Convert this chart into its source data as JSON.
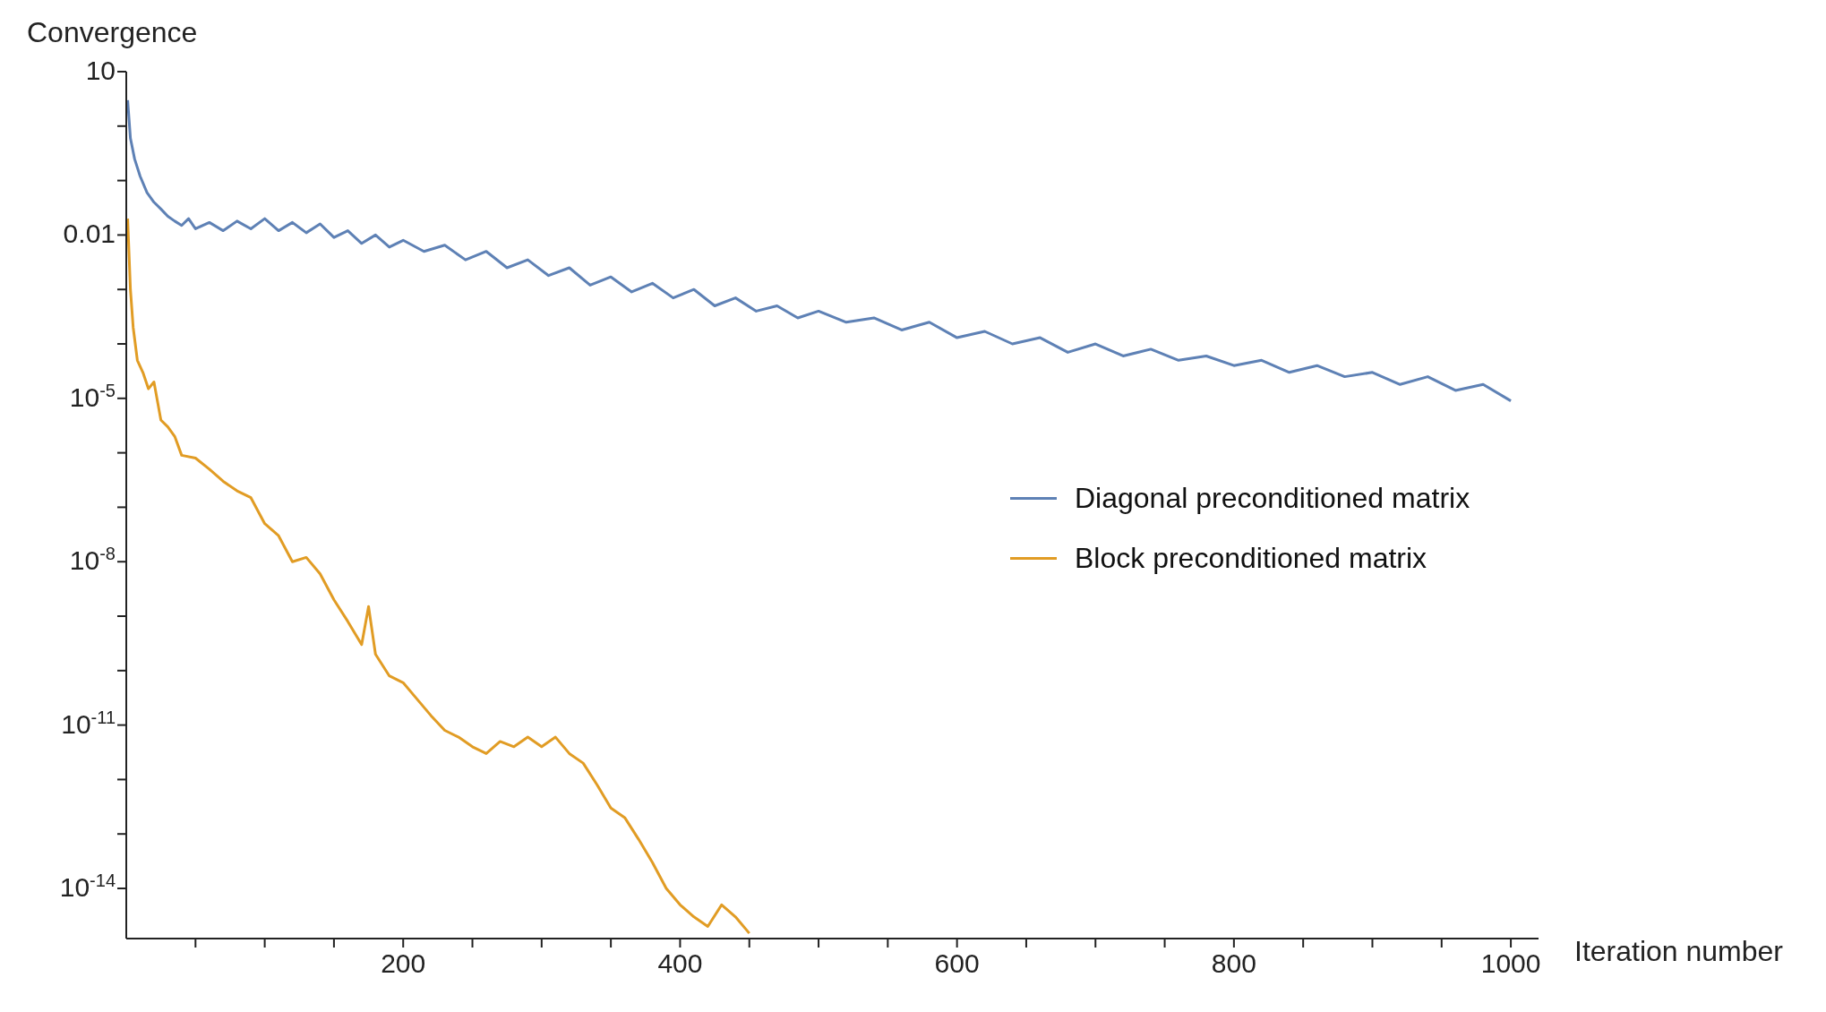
{
  "chart_data": {
    "type": "line",
    "xlabel": "Iteration number",
    "ylabel": "Convergence",
    "log": "y",
    "legend": "right",
    "marker": "none",
    "line_style": "solid",
    "xlim": [
      0,
      1020
    ],
    "xticks": [
      {
        "value": 50,
        "label": null
      },
      {
        "value": 100,
        "label": null
      },
      {
        "value": 150,
        "label": null
      },
      200,
      {
        "value": 250,
        "label": null
      },
      {
        "value": 300,
        "label": null
      },
      {
        "value": 350,
        "label": null
      },
      400,
      {
        "value": 450,
        "label": null
      },
      {
        "value": 500,
        "label": null
      },
      {
        "value": 550,
        "label": null
      },
      600,
      {
        "value": 650,
        "label": null
      },
      {
        "value": 700,
        "label": null
      },
      {
        "value": 750,
        "label": null
      },
      800,
      {
        "value": 850,
        "label": null
      },
      {
        "value": 900,
        "label": null
      },
      {
        "value": 950,
        "label": null
      },
      1000
    ],
    "ylim": [
      1.2e-15,
      10
    ],
    "yticks": [
      {
        "value": 1e-14,
        "label": "10$^{-14}$"
      },
      {
        "value": 1e-13,
        "label": null
      },
      {
        "value": 1e-12,
        "label": null
      },
      {
        "value": 1e-11,
        "label": "10$^{-11}$"
      },
      {
        "value": 1e-10,
        "label": null
      },
      {
        "value": 1e-09,
        "label": null
      },
      {
        "value": 1e-08,
        "label": "10$^{-8}$"
      },
      {
        "value": 1e-07,
        "label": null
      },
      {
        "value": 1e-06,
        "label": null
      },
      {
        "value": 1e-05,
        "label": "10$^{-5}$"
      },
      {
        "value": 0.0001,
        "label": null
      },
      {
        "value": 0.001,
        "label": null
      },
      0.01,
      {
        "value": 0.1,
        "label": null
      },
      {
        "value": 1,
        "label": null
      },
      10
    ],
    "series": [
      {
        "name": "Diagonal preconditioned matrix",
        "color": "#5e81b5",
        "x": [
          1,
          3,
          6,
          10,
          15,
          20,
          25,
          30,
          35,
          40,
          45,
          50,
          60,
          70,
          80,
          90,
          100,
          110,
          120,
          130,
          140,
          150,
          160,
          170,
          180,
          190,
          200,
          215,
          230,
          245,
          260,
          275,
          290,
          305,
          320,
          335,
          350,
          365,
          380,
          395,
          410,
          425,
          440,
          455,
          470,
          485,
          500,
          520,
          540,
          560,
          580,
          600,
          620,
          640,
          660,
          680,
          700,
          720,
          740,
          760,
          780,
          800,
          820,
          840,
          860,
          880,
          900,
          920,
          940,
          960,
          980,
          1000
        ],
        "values": [
          3,
          0.6,
          0.25,
          0.12,
          0.06,
          0.04,
          0.03,
          0.022,
          0.018,
          0.015,
          0.02,
          0.013,
          0.017,
          0.012,
          0.018,
          0.013,
          0.02,
          0.012,
          0.017,
          0.011,
          0.016,
          0.009,
          0.012,
          0.007,
          0.01,
          0.006,
          0.008,
          0.005,
          0.0065,
          0.0035,
          0.005,
          0.0025,
          0.0035,
          0.0018,
          0.0025,
          0.0012,
          0.0017,
          0.0009,
          0.0013,
          0.0007,
          0.001,
          0.0005,
          0.0007,
          0.0004,
          0.0005,
          0.0003,
          0.0004,
          0.00025,
          0.0003,
          0.00018,
          0.00025,
          0.00013,
          0.00017,
          0.0001,
          0.00013,
          7e-05,
          0.0001,
          6e-05,
          8e-05,
          5e-05,
          6e-05,
          4e-05,
          5e-05,
          3e-05,
          4e-05,
          2.5e-05,
          3e-05,
          1.8e-05,
          2.5e-05,
          1.4e-05,
          1.8e-05,
          9e-06
        ]
      },
      {
        "name": "Block preconditioned matrix",
        "color": "#e19c24",
        "x": [
          1,
          3,
          5,
          8,
          12,
          16,
          20,
          25,
          30,
          35,
          40,
          50,
          60,
          70,
          80,
          90,
          100,
          110,
          120,
          130,
          140,
          150,
          160,
          170,
          175,
          180,
          190,
          200,
          210,
          220,
          230,
          240,
          250,
          260,
          270,
          280,
          290,
          300,
          310,
          320,
          330,
          340,
          350,
          360,
          370,
          380,
          390,
          400,
          410,
          420,
          430,
          440,
          450
        ],
        "values": [
          0.02,
          0.001,
          0.0002,
          5e-05,
          3e-05,
          1.5e-05,
          2e-05,
          4e-06,
          3e-06,
          2e-06,
          9e-07,
          8e-07,
          5e-07,
          3e-07,
          2e-07,
          1.5e-07,
          5e-08,
          3e-08,
          1e-08,
          1.2e-08,
          6e-09,
          2e-09,
          8e-10,
          3e-10,
          1.5e-09,
          2e-10,
          8e-11,
          6e-11,
          3e-11,
          1.5e-11,
          8e-12,
          6e-12,
          4e-12,
          3e-12,
          5e-12,
          4e-12,
          6e-12,
          4e-12,
          6e-12,
          3e-12,
          2e-12,
          8e-13,
          3e-13,
          2e-13,
          8e-14,
          3e-14,
          1e-14,
          5e-15,
          3e-15,
          2e-15,
          5e-15,
          3e-15,
          1.5e-15
        ]
      }
    ]
  }
}
